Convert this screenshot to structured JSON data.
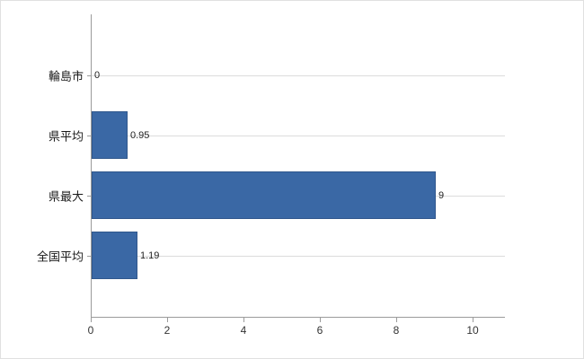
{
  "chart_data": {
    "type": "bar",
    "orientation": "horizontal",
    "title": "",
    "categories": [
      "輪島市",
      "県平均",
      "県最大",
      "全国平均"
    ],
    "values": [
      0,
      0.95,
      9,
      1.19
    ],
    "value_labels": [
      "0",
      "0.95",
      "9",
      "1.19"
    ],
    "x_ticks": [
      0,
      2,
      4,
      6,
      8,
      10
    ],
    "x_tick_labels": [
      "0",
      "2",
      "4",
      "6",
      "8",
      "10"
    ],
    "xlim": [
      0,
      10.8
    ],
    "grid": true,
    "legend": "none",
    "bar_color": "#3a68a5",
    "bar_border_color": "#30578c",
    "gridline_color": "#dcdcdc",
    "axis_color": "#9b9b9b",
    "background_color": "#ffffff"
  }
}
